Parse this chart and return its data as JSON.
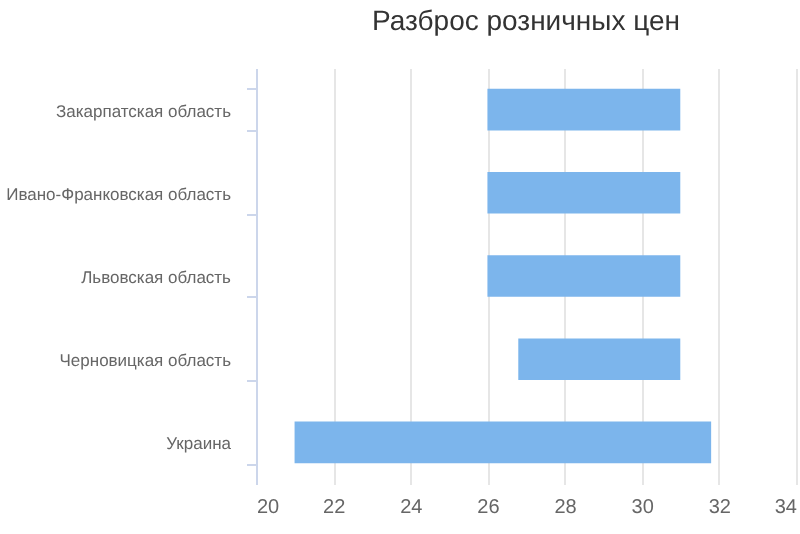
{
  "chart_data": {
    "type": "bar",
    "title": "Разброс розничных цен",
    "orientation": "horizontal",
    "categories": [
      "Закарпатская область",
      "Ивано-Франковская область",
      "Львовская область",
      "Черновицкая область",
      "Украина"
    ],
    "base": [
      26,
      26,
      26,
      26.8,
      21
    ],
    "values": [
      5,
      5,
      5,
      4.2,
      10.8
    ],
    "color": "#7cb5ec",
    "xlim": [
      20,
      34
    ],
    "xticks": [
      20,
      22,
      24,
      26,
      28,
      30,
      32,
      34
    ],
    "grid": "x"
  }
}
